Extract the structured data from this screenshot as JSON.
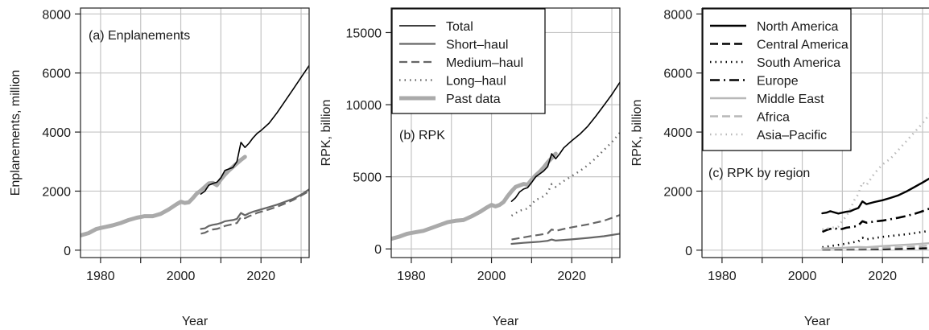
{
  "chart_data": [
    {
      "type": "line",
      "panel_label": "(a) Enplanements",
      "xlabel": "Year",
      "ylabel": "Enplanements, million",
      "xlim": [
        1975,
        2032
      ],
      "ylim": [
        -250,
        8200
      ],
      "xticks": [
        1980,
        2000,
        2020
      ],
      "yticks": [
        0,
        2000,
        4000,
        6000,
        8000
      ],
      "grid": true,
      "series": [
        {
          "name": "Past data",
          "x": [
            1975,
            1977,
            1979,
            1981,
            1983,
            1985,
            1987,
            1989,
            1991,
            1993,
            1995,
            1997,
            1999,
            2000,
            2001,
            2002,
            2003,
            2004,
            2005,
            2006,
            2007,
            2008,
            2009,
            2010,
            2011,
            2012,
            2013,
            2014,
            2015,
            2016
          ],
          "y": [
            500,
            580,
            720,
            780,
            840,
            920,
            1020,
            1100,
            1150,
            1150,
            1230,
            1380,
            1560,
            1640,
            1600,
            1620,
            1760,
            1920,
            2020,
            2140,
            2260,
            2280,
            2200,
            2400,
            2560,
            2700,
            2820,
            2940,
            3060,
            3160
          ]
        },
        {
          "name": "Total",
          "x": [
            2005,
            2006,
            2007,
            2008,
            2009,
            2010,
            2011,
            2012,
            2013,
            2014,
            2015,
            2016,
            2017,
            2018,
            2019,
            2020,
            2022,
            2024,
            2026,
            2028,
            2030,
            2032
          ],
          "y": [
            1900,
            2000,
            2200,
            2260,
            2300,
            2450,
            2700,
            2750,
            2800,
            3000,
            3650,
            3480,
            3620,
            3800,
            3950,
            4050,
            4300,
            4650,
            5050,
            5450,
            5850,
            6250
          ]
        },
        {
          "name": "Short-haul",
          "x": [
            2005,
            2006,
            2007,
            2008,
            2009,
            2010,
            2011,
            2012,
            2013,
            2014,
            2015,
            2016,
            2017,
            2018,
            2019,
            2020,
            2022,
            2024,
            2026,
            2028,
            2030,
            2032
          ],
          "y": [
            720,
            740,
            820,
            860,
            880,
            920,
            980,
            1000,
            1020,
            1060,
            1260,
            1180,
            1250,
            1300,
            1340,
            1380,
            1460,
            1540,
            1640,
            1740,
            1880,
            2060
          ]
        },
        {
          "name": "Medium-haul",
          "x": [
            2005,
            2006,
            2007,
            2008,
            2009,
            2010,
            2011,
            2012,
            2013,
            2014,
            2015,
            2016,
            2017,
            2018,
            2019,
            2020,
            2022,
            2024,
            2026,
            2028,
            2030,
            2032
          ],
          "y": [
            560,
            590,
            660,
            700,
            720,
            760,
            820,
            850,
            880,
            920,
            1120,
            1080,
            1150,
            1200,
            1260,
            1300,
            1380,
            1470,
            1580,
            1700,
            1850,
            2000
          ]
        }
      ]
    },
    {
      "type": "line",
      "panel_label": "(b) RPK",
      "xlabel": "Year",
      "ylabel": "RPK, billion",
      "xlim": [
        1975,
        2032
      ],
      "ylim": [
        -600,
        16700
      ],
      "xticks": [
        1980,
        2000,
        2020
      ],
      "yticks": [
        0,
        5000,
        10000,
        15000
      ],
      "grid": true,
      "legend": {
        "position": "top-left",
        "entries": [
          "Total",
          "Short–haul",
          "Medium–haul",
          "Long–haul",
          "Past data"
        ]
      },
      "series": [
        {
          "name": "Past data",
          "x": [
            1975,
            1977,
            1979,
            1981,
            1983,
            1985,
            1987,
            1989,
            1991,
            1993,
            1995,
            1997,
            1999,
            2000,
            2001,
            2002,
            2003,
            2004,
            2005,
            2006,
            2007,
            2008,
            2009,
            2010,
            2011,
            2012,
            2013,
            2014,
            2015,
            2016
          ],
          "y": [
            700,
            850,
            1050,
            1150,
            1250,
            1450,
            1650,
            1850,
            1950,
            2000,
            2250,
            2550,
            2900,
            3050,
            2950,
            3050,
            3250,
            3650,
            4000,
            4300,
            4400,
            4500,
            4450,
            4800,
            5100,
            5350,
            5650,
            6000,
            6300,
            6600
          ]
        },
        {
          "name": "Total",
          "x": [
            2005,
            2006,
            2007,
            2008,
            2009,
            2010,
            2011,
            2012,
            2013,
            2014,
            2015,
            2016,
            2017,
            2018,
            2019,
            2020,
            2022,
            2024,
            2026,
            2028,
            2030,
            2032
          ],
          "y": [
            3300,
            3550,
            3950,
            4150,
            4250,
            4600,
            5000,
            5200,
            5400,
            5700,
            6600,
            6250,
            6600,
            7000,
            7250,
            7500,
            7950,
            8500,
            9200,
            9950,
            10700,
            11550
          ]
        },
        {
          "name": "Short–haul",
          "x": [
            2005,
            2008,
            2010,
            2012,
            2014,
            2015,
            2016,
            2018,
            2020,
            2024,
            2028,
            2032
          ],
          "y": [
            350,
            420,
            460,
            500,
            560,
            650,
            580,
            620,
            660,
            760,
            880,
            1050
          ]
        },
        {
          "name": "Medium–haul",
          "x": [
            2005,
            2008,
            2010,
            2012,
            2014,
            2015,
            2016,
            2018,
            2020,
            2024,
            2028,
            2032
          ],
          "y": [
            650,
            800,
            900,
            980,
            1080,
            1350,
            1250,
            1380,
            1500,
            1700,
            1950,
            2350
          ]
        },
        {
          "name": "Long–haul",
          "x": [
            2005,
            2007,
            2009,
            2010,
            2011,
            2012,
            2013,
            2014,
            2015,
            2016,
            2018,
            2020,
            2022,
            2024,
            2026,
            2028,
            2030,
            2032
          ],
          "y": [
            2300,
            2650,
            2800,
            3100,
            3400,
            3500,
            3650,
            3900,
            4500,
            4300,
            4700,
            5050,
            5400,
            5800,
            6300,
            6850,
            7400,
            8050
          ]
        }
      ]
    },
    {
      "type": "line",
      "panel_label": "(c) RPK by region",
      "xlabel": "Year",
      "ylabel": "RPK, billion",
      "xlim": [
        1975,
        2032
      ],
      "ylim": [
        -250,
        8200
      ],
      "xticks": [
        1980,
        2000,
        2020
      ],
      "yticks": [
        0,
        2000,
        4000,
        6000,
        8000
      ],
      "grid": true,
      "legend": {
        "position": "top-left",
        "entries": [
          "North America",
          "Central America",
          "South America",
          "Europe",
          "Middle East",
          "Africa",
          "Asia–Pacific"
        ]
      },
      "series": [
        {
          "name": "North America",
          "x": [
            2005,
            2006,
            2007,
            2008,
            2009,
            2010,
            2011,
            2012,
            2013,
            2014,
            2015,
            2016,
            2018,
            2020,
            2022,
            2024,
            2026,
            2028,
            2030,
            2032
          ],
          "y": [
            1250,
            1270,
            1320,
            1280,
            1240,
            1270,
            1300,
            1320,
            1380,
            1430,
            1650,
            1560,
            1630,
            1690,
            1770,
            1860,
            1990,
            2140,
            2290,
            2450
          ]
        },
        {
          "name": "Central America",
          "x": [
            2005,
            2010,
            2015,
            2020,
            2025,
            2030,
            2032
          ],
          "y": [
            20,
            25,
            35,
            40,
            50,
            60,
            65
          ]
        },
        {
          "name": "South America",
          "x": [
            2005,
            2008,
            2010,
            2012,
            2014,
            2015,
            2016,
            2018,
            2020,
            2022,
            2024,
            2026,
            2028,
            2030,
            2032
          ],
          "y": [
            100,
            160,
            200,
            250,
            300,
            420,
            370,
            410,
            450,
            480,
            510,
            540,
            580,
            620,
            660
          ]
        },
        {
          "name": "Europe",
          "x": [
            2005,
            2006,
            2007,
            2008,
            2009,
            2010,
            2011,
            2012,
            2013,
            2014,
            2015,
            2016,
            2018,
            2020,
            2022,
            2024,
            2026,
            2028,
            2030,
            2032
          ],
          "y": [
            620,
            680,
            720,
            750,
            700,
            720,
            760,
            780,
            800,
            840,
            980,
            930,
            970,
            1000,
            1050,
            1100,
            1160,
            1230,
            1320,
            1420
          ]
        },
        {
          "name": "Middle East",
          "x": [
            2005,
            2008,
            2010,
            2014,
            2016,
            2020,
            2024,
            2028,
            2032
          ],
          "y": [
            60,
            70,
            80,
            110,
            100,
            140,
            170,
            200,
            240
          ]
        },
        {
          "name": "Africa",
          "x": [
            2005,
            2010,
            2015,
            2020,
            2025,
            2030,
            2032
          ],
          "y": [
            40,
            50,
            60,
            80,
            100,
            140,
            160
          ]
        },
        {
          "name": "Asia–Pacific",
          "x": [
            2005,
            2007,
            2009,
            2010,
            2011,
            2012,
            2013,
            2014,
            2015,
            2016,
            2018,
            2020,
            2022,
            2024,
            2026,
            2028,
            2030,
            2032
          ],
          "y": [
            700,
            750,
            800,
            1000,
            1150,
            1400,
            1700,
            1900,
            2300,
            2200,
            2600,
            2900,
            3100,
            3400,
            3700,
            4000,
            4300,
            4650
          ]
        }
      ]
    }
  ],
  "styles": {
    "Total": {
      "color": "#000000",
      "dash": "",
      "width": 1.6
    },
    "Short-haul": {
      "color": "#666666",
      "dash": "",
      "width": 2.2
    },
    "Short–haul": {
      "color": "#666666",
      "dash": "",
      "width": 2.2
    },
    "Medium-haul": {
      "color": "#666666",
      "dash": "10 5",
      "width": 2.2
    },
    "Medium–haul": {
      "color": "#666666",
      "dash": "10 5",
      "width": 2.2
    },
    "Long–haul": {
      "color": "#666666",
      "dash": "1.5 5",
      "width": 2.4
    },
    "Past data": {
      "color": "#aaaaaa",
      "dash": "",
      "width": 5
    },
    "North America": {
      "color": "#000000",
      "dash": "",
      "width": 2.4
    },
    "Central America": {
      "color": "#000000",
      "dash": "10 5",
      "width": 2.4
    },
    "South America": {
      "color": "#000000",
      "dash": "1.5 5",
      "width": 2.6
    },
    "Europe": {
      "color": "#000000",
      "dash": "12 5 2 5",
      "width": 2.6
    },
    "Middle East": {
      "color": "#b8b8b8",
      "dash": "",
      "width": 2.4
    },
    "Africa": {
      "color": "#b8b8b8",
      "dash": "10 5",
      "width": 2.4
    },
    "Asia–Pacific": {
      "color": "#b8b8b8",
      "dash": "1.5 5",
      "width": 2.6
    }
  }
}
